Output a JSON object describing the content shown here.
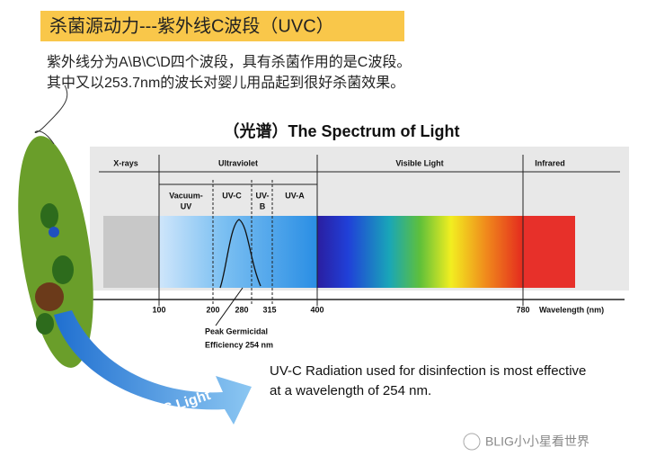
{
  "header": {
    "title": "杀菌源动力---紫外线C波段（UVC）",
    "lines": [
      "紫外线分为A\\B\\C\\D四个波段，具有杀菌作用的是C波段。",
      "其中又以253.7nm的波长对婴儿用品起到很好杀菌效果。"
    ]
  },
  "spectrum": {
    "title": "（光谱）The Spectrum of Light",
    "regions": [
      "X-rays",
      "Ultraviolet",
      "Visible Light",
      "Infrared"
    ],
    "uv_bands": [
      "Vacuum-UV",
      "UV-C",
      "UV-B",
      "UV-A"
    ],
    "ticks": [
      100,
      200,
      280,
      315,
      400,
      780
    ],
    "axis_label": "Wavelength (nm)",
    "peak_label": [
      "Peak Germicidal",
      "Efficiency 254 nm"
    ]
  },
  "caption": [
    "UV-C Radiation used for disinfection is most effective",
    "at a wavelength of 254 nm."
  ],
  "arrow_label": "UV-C Light",
  "watermark": "BLIG小小星看世界"
}
